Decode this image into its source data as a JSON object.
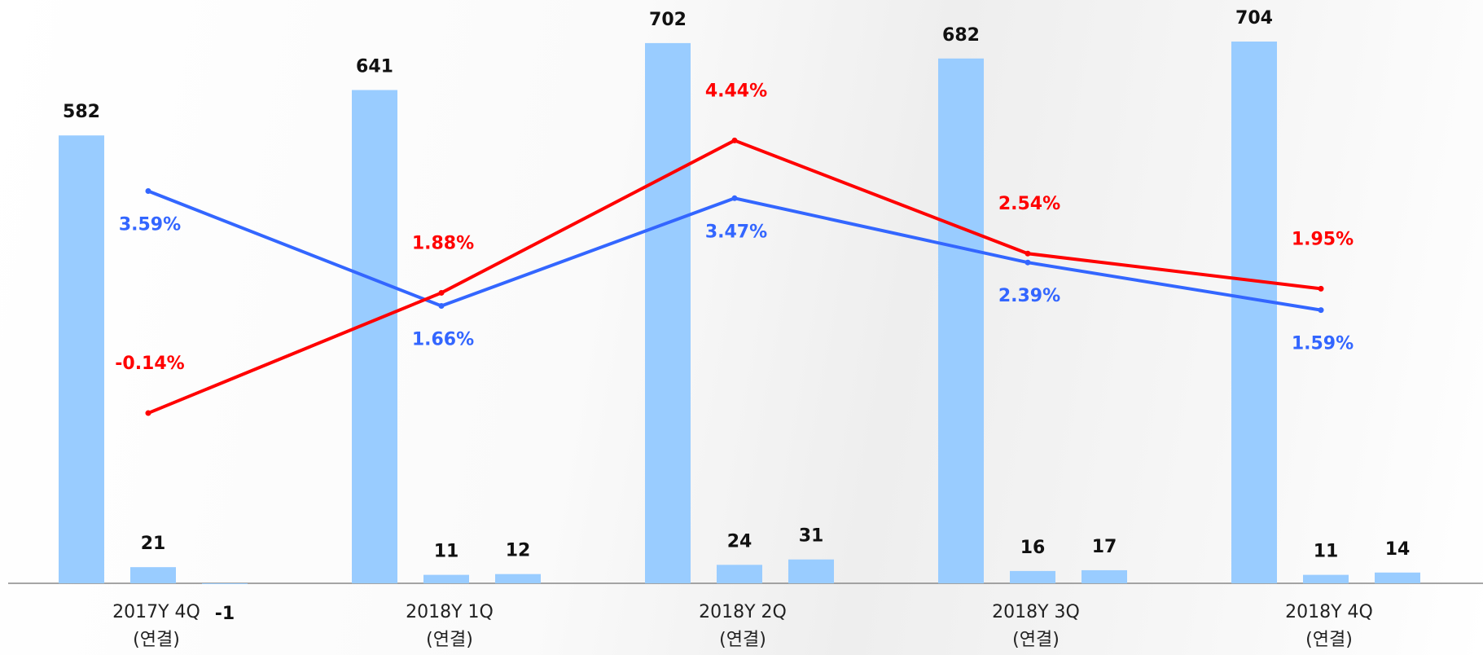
{
  "chart_data": {
    "type": "bar",
    "categories": [
      [
        "2017Y 4Q",
        "(연결)"
      ],
      [
        "2018Y 1Q",
        "(연결)"
      ],
      [
        "2018Y 2Q",
        "(연결)"
      ],
      [
        "2018Y 3Q",
        "(연결)"
      ],
      [
        "2018Y 4Q",
        "(연결)"
      ]
    ],
    "ylim": [
      0,
      758
    ],
    "y2lim": [
      -3,
      6.8
    ],
    "series": [
      {
        "type": "bar",
        "color": "#99ccff",
        "values": [
          582,
          641,
          702,
          682,
          704
        ]
      },
      {
        "type": "bar",
        "color": "#99ccff",
        "values": [
          21,
          11,
          24,
          16,
          11
        ]
      },
      {
        "type": "bar",
        "color": "#99ccff",
        "values": [
          -1,
          12,
          31,
          17,
          14
        ]
      },
      {
        "type": "line",
        "axis": "y2",
        "color": "#3366ff",
        "values": [
          3.59,
          1.66,
          3.47,
          2.39,
          1.59
        ],
        "value_labels": [
          "3.59%",
          "1.66%",
          "3.47%",
          "2.39%",
          "1.59%"
        ]
      },
      {
        "type": "line",
        "axis": "y2",
        "color": "#ff0000",
        "values": [
          -0.14,
          1.88,
          4.44,
          2.54,
          1.95
        ],
        "value_labels": [
          "-0.14%",
          "1.88%",
          "4.44%",
          "2.54%",
          "1.95%"
        ]
      }
    ]
  }
}
